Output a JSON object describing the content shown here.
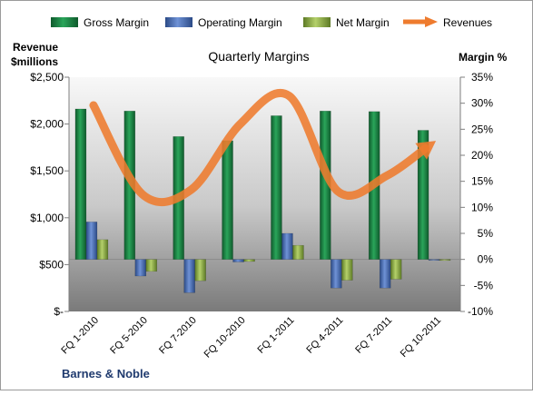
{
  "chart_data": {
    "type": "bar",
    "title": "Quarterly Margins",
    "footer": "Barnes & Noble",
    "categories": [
      "FQ 1-2010",
      "FQ 5-2010",
      "FQ 7-2010",
      "FQ 10-2010",
      "FQ 1-2011",
      "FQ 4-2011",
      "FQ 7-2011",
      "FQ 10-2011"
    ],
    "left_axis": {
      "label_line1": "Revenue",
      "label_line2": "$millions",
      "ylim": [
        0,
        2500
      ],
      "ticks": [
        0,
        500,
        1000,
        1500,
        2000,
        2500
      ],
      "tick_labels": [
        "$-",
        "$500",
        "$1,000",
        "$1,500",
        "$2,000",
        "$2,500"
      ]
    },
    "right_axis": {
      "label": "Margin %",
      "ylim": [
        -10,
        35
      ],
      "ticks": [
        -10,
        -5,
        0,
        5,
        10,
        15,
        20,
        25,
        30,
        35
      ],
      "tick_labels": [
        "-10%",
        "-5%",
        "0%",
        "5%",
        "10%",
        "15%",
        "20%",
        "25%",
        "30%",
        "35%"
      ]
    },
    "series": [
      {
        "name": "Gross Margin",
        "kind": "bar",
        "axis": "right",
        "color": "#1e8a4a",
        "values": [
          28.9,
          28.5,
          23.6,
          22.8,
          27.6,
          28.5,
          28.4,
          24.8
        ]
      },
      {
        "name": "Operating Margin",
        "kind": "bar",
        "axis": "right",
        "color": "#4a70b8",
        "values": [
          7.2,
          -3.2,
          -6.4,
          -0.5,
          5.0,
          -5.5,
          -5.5,
          -0.1
        ]
      },
      {
        "name": "Net Margin",
        "kind": "bar",
        "axis": "right",
        "color": "#95b54a",
        "values": [
          3.8,
          -2.3,
          -4.1,
          -0.4,
          2.7,
          -4.0,
          -3.8,
          -0.2
        ]
      },
      {
        "name": "Revenues",
        "kind": "line",
        "axis": "left",
        "color": "#ee7b2e",
        "values": [
          2200,
          1250,
          1300,
          2000,
          2300,
          1280,
          1450,
          1820
        ]
      }
    ],
    "legend": [
      "Gross Margin",
      "Operating Margin",
      "Net Margin",
      "Revenues"
    ],
    "legend_position": "top",
    "grid": false
  }
}
